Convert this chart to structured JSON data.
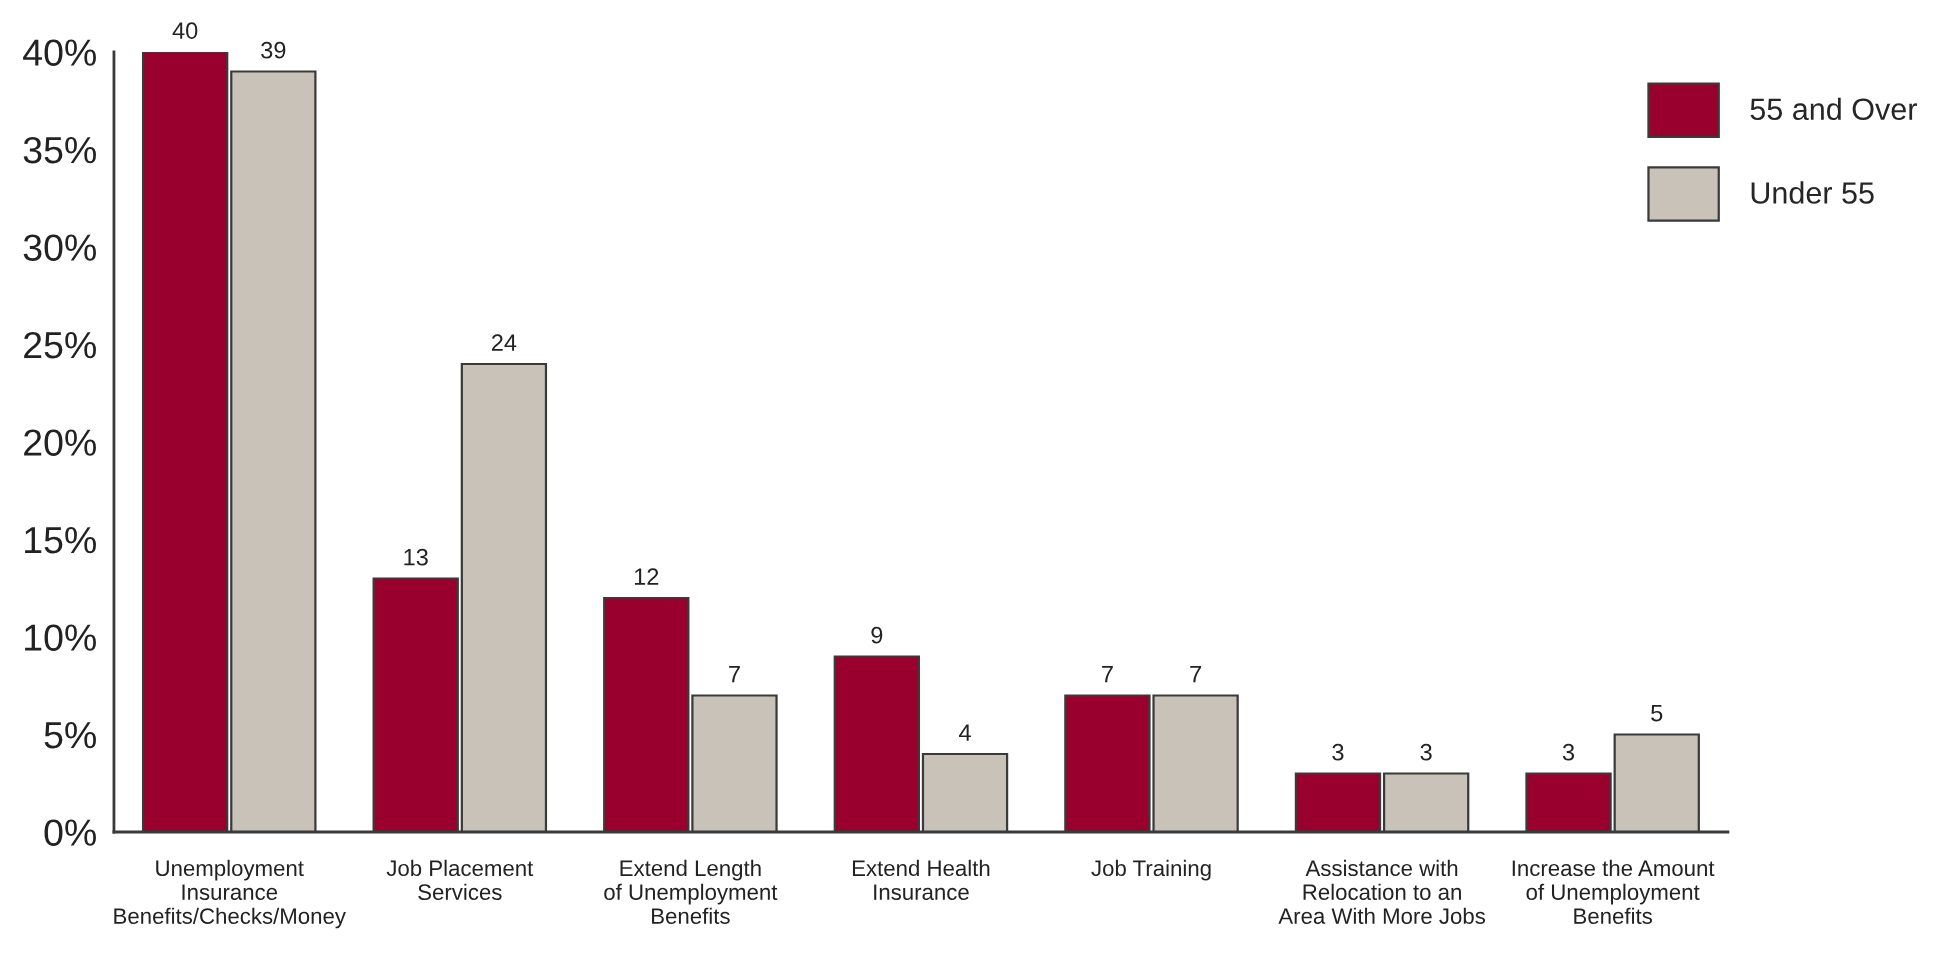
{
  "chart_data": {
    "type": "bar",
    "categories": [
      "Unemployment\nInsurance\nBenefits/Checks/Money",
      "Job Placement\nServices",
      "Extend Length\nof Unemployment\nBenefits",
      "Extend Health\nInsurance",
      "Job Training",
      "Assistance with\nRelocation to an\nArea With More Jobs",
      "Increase the Amount\nof Unemployment\nBenefits"
    ],
    "series": [
      {
        "name": "55 and Over",
        "color": "#99002e",
        "values": [
          40,
          13,
          12,
          9,
          7,
          3,
          3
        ]
      },
      {
        "name": "Under 55",
        "color": "#c9c2b9",
        "values": [
          39,
          24,
          7,
          4,
          7,
          3,
          5
        ]
      }
    ],
    "ylim": [
      0,
      40
    ],
    "yticks": [
      {
        "value": 0,
        "label": "0%"
      },
      {
        "value": 5,
        "label": "5%"
      },
      {
        "value": 10,
        "label": "10%"
      },
      {
        "value": 15,
        "label": "15%"
      },
      {
        "value": 20,
        "label": "20%"
      },
      {
        "value": 25,
        "label": "25%"
      },
      {
        "value": 30,
        "label": "30%"
      },
      {
        "value": 35,
        "label": "35%"
      },
      {
        "value": 40,
        "label": "40%"
      }
    ],
    "data_labels": true,
    "legend": "top right"
  }
}
